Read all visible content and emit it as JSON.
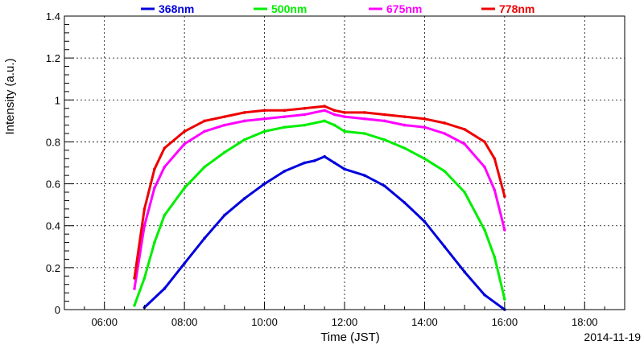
{
  "chart_data": {
    "type": "line",
    "title": "",
    "xlabel": "Time (JST)",
    "ylabel": "Intensity (a.u.)",
    "date": "2014-11-19",
    "xlim": [
      "05:00",
      "19:00"
    ],
    "ylim": [
      0,
      1.4
    ],
    "x_ticks": [
      "06:00",
      "08:00",
      "10:00",
      "12:00",
      "14:00",
      "16:00",
      "18:00"
    ],
    "y_ticks": [
      "0",
      "0.2",
      "0.4",
      "0.6",
      "0.8",
      "1",
      "1.2",
      "1.4"
    ],
    "grid": true,
    "legend_position": "top",
    "series": [
      {
        "name": "368nm",
        "color": "#0000dd",
        "x": [
          "07:00",
          "07:30",
          "08:00",
          "08:30",
          "09:00",
          "09:30",
          "10:00",
          "10:30",
          "11:00",
          "11:15",
          "11:30",
          "11:45",
          "12:00",
          "12:30",
          "13:00",
          "13:30",
          "14:00",
          "14:30",
          "15:00",
          "15:30",
          "16:00"
        ],
        "y": [
          0.01,
          0.1,
          0.22,
          0.34,
          0.45,
          0.53,
          0.6,
          0.66,
          0.7,
          0.71,
          0.73,
          0.7,
          0.67,
          0.64,
          0.59,
          0.51,
          0.42,
          0.3,
          0.18,
          0.07,
          0.0
        ]
      },
      {
        "name": "500nm",
        "color": "#00ee00",
        "x": [
          "06:45",
          "07:00",
          "07:15",
          "07:30",
          "08:00",
          "08:30",
          "09:00",
          "09:30",
          "10:00",
          "10:30",
          "11:00",
          "11:30",
          "11:45",
          "12:00",
          "12:30",
          "13:00",
          "13:30",
          "14:00",
          "14:30",
          "15:00",
          "15:30",
          "15:45",
          "16:00"
        ],
        "y": [
          0.02,
          0.15,
          0.32,
          0.45,
          0.58,
          0.68,
          0.75,
          0.81,
          0.85,
          0.87,
          0.88,
          0.9,
          0.88,
          0.85,
          0.84,
          0.81,
          0.77,
          0.72,
          0.66,
          0.56,
          0.38,
          0.25,
          0.05
        ]
      },
      {
        "name": "675nm",
        "color": "#ff00ff",
        "x": [
          "06:45",
          "07:00",
          "07:15",
          "07:30",
          "08:00",
          "08:30",
          "09:00",
          "09:30",
          "10:00",
          "10:30",
          "11:00",
          "11:30",
          "11:45",
          "12:00",
          "12:30",
          "13:00",
          "13:30",
          "14:00",
          "14:30",
          "15:00",
          "15:30",
          "15:45",
          "16:00"
        ],
        "y": [
          0.1,
          0.4,
          0.58,
          0.68,
          0.79,
          0.85,
          0.88,
          0.9,
          0.91,
          0.92,
          0.93,
          0.95,
          0.93,
          0.92,
          0.91,
          0.9,
          0.88,
          0.87,
          0.84,
          0.79,
          0.68,
          0.57,
          0.38
        ]
      },
      {
        "name": "778nm",
        "color": "#ee0000",
        "x": [
          "06:45",
          "07:00",
          "07:15",
          "07:30",
          "08:00",
          "08:30",
          "09:00",
          "09:30",
          "10:00",
          "10:30",
          "11:00",
          "11:30",
          "11:45",
          "12:00",
          "12:30",
          "13:00",
          "13:30",
          "14:00",
          "14:30",
          "15:00",
          "15:30",
          "15:45",
          "16:00"
        ],
        "y": [
          0.15,
          0.48,
          0.67,
          0.77,
          0.85,
          0.9,
          0.92,
          0.94,
          0.95,
          0.95,
          0.96,
          0.97,
          0.95,
          0.94,
          0.94,
          0.93,
          0.92,
          0.91,
          0.89,
          0.86,
          0.8,
          0.72,
          0.54
        ]
      }
    ]
  }
}
